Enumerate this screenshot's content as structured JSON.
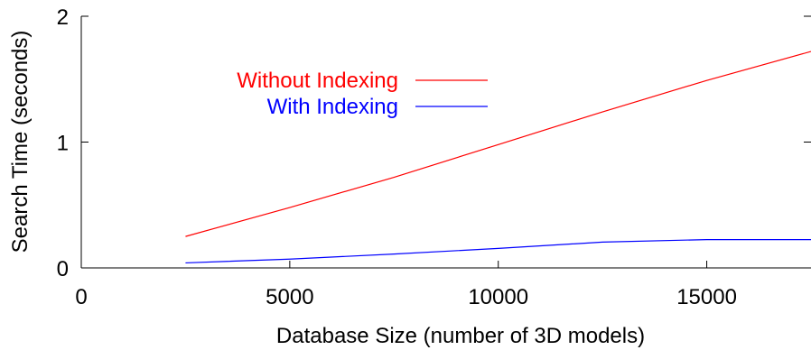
{
  "chart_data": {
    "type": "line",
    "xlabel": "Database Size (number of 3D models)",
    "ylabel": "Search Time (seconds)",
    "xlim": [
      0,
      17500
    ],
    "ylim": [
      0,
      2
    ],
    "xticks": [
      0,
      5000,
      10000,
      15000
    ],
    "yticks": [
      0,
      1,
      2
    ],
    "x_tick_labels": [
      "0",
      "5000",
      "10000",
      "15000"
    ],
    "y_tick_labels": [
      "0",
      "1",
      "2"
    ],
    "grid": false,
    "legend_position": "top-left",
    "series": [
      {
        "name": "Without Indexing",
        "color": "#ff0000",
        "x": [
          2500,
          5000,
          7500,
          10000,
          12500,
          15000,
          17500
        ],
        "y": [
          0.25,
          0.48,
          0.72,
          0.98,
          1.24,
          1.49,
          1.72
        ]
      },
      {
        "name": "With Indexing",
        "color": "#0000ff",
        "x": [
          2500,
          5000,
          7500,
          10000,
          12500,
          15000,
          17500
        ],
        "y": [
          0.04,
          0.07,
          0.11,
          0.155,
          0.205,
          0.225,
          0.225
        ]
      }
    ]
  }
}
